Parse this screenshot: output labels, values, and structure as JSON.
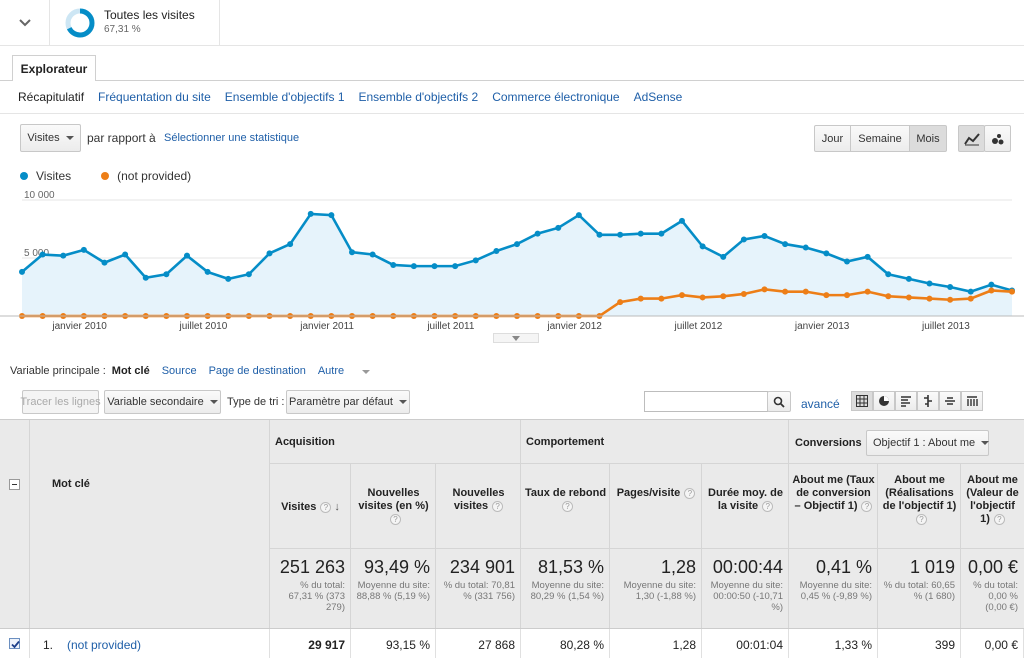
{
  "segment": {
    "title": "Toutes les visites",
    "percent": "67,31 %",
    "ring_fraction": 0.6731
  },
  "tabs": {
    "explorer": "Explorateur"
  },
  "subnav": [
    "Récapitulatif",
    "Fréquentation du site",
    "Ensemble d'objectifs 1",
    "Ensemble d'objectifs 2",
    "Commerce électronique",
    "AdSense"
  ],
  "controls": {
    "metric_select": "Visites",
    "compare_label": "par rapport à",
    "select_metric_link": "Sélectionner une statistique",
    "period_buttons": [
      "Jour",
      "Semaine",
      "Mois"
    ],
    "active_period": "Mois"
  },
  "legend": [
    {
      "label": "Visites",
      "color": "#058dc7"
    },
    {
      "label": "(not provided)",
      "color": "#ed7e17"
    }
  ],
  "chart_data": {
    "type": "line",
    "ylim": [
      0,
      10000
    ],
    "y_ticks": [
      "10 000",
      "5 000"
    ],
    "x_labels": [
      "janvier 2010",
      "juillet 2010",
      "janvier 2011",
      "juillet 2011",
      "janvier 2012",
      "juillet 2012",
      "janvier 2013",
      "juillet 2013"
    ],
    "series": [
      {
        "name": "Visites",
        "color": "#058dc7",
        "fill": true,
        "values": [
          3800,
          5300,
          5200,
          5700,
          4600,
          5300,
          3300,
          3600,
          5200,
          3800,
          3200,
          3600,
          5400,
          6200,
          8800,
          8700,
          5500,
          5300,
          4400,
          4300,
          4300,
          4300,
          4800,
          5600,
          6200,
          7100,
          7600,
          8700,
          7000,
          7000,
          7100,
          7100,
          8200,
          6000,
          5100,
          6600,
          6900,
          6200,
          5900,
          5400,
          4700,
          5100,
          3600,
          3200,
          2800,
          2500,
          2100,
          2700,
          2200
        ]
      },
      {
        "name": "(not provided)",
        "color": "#ed7e17",
        "fill": false,
        "values": [
          0,
          0,
          0,
          0,
          0,
          0,
          0,
          0,
          0,
          0,
          0,
          0,
          0,
          0,
          0,
          0,
          0,
          0,
          0,
          0,
          0,
          0,
          0,
          0,
          0,
          0,
          0,
          0,
          0,
          1200,
          1500,
          1500,
          1800,
          1600,
          1700,
          1900,
          2300,
          2100,
          2100,
          1800,
          1800,
          2100,
          1700,
          1600,
          1500,
          1400,
          1500,
          2200,
          2100
        ]
      }
    ]
  },
  "primary_dimension": {
    "label": "Variable principale :",
    "options": [
      "Mot clé",
      "Source",
      "Page de destination",
      "Autre"
    ]
  },
  "toolbar": {
    "plot_rows": "Tracer les lignes",
    "secondary_dim": "Variable secondaire",
    "sort_label": "Type de tri :",
    "sort_value": "Paramètre par défaut",
    "search_placeholder": "",
    "advanced": "avancé"
  },
  "table": {
    "keyword_header": "Mot clé",
    "groups": {
      "acquisition": "Acquisition",
      "behavior": "Comportement",
      "conversions": "Conversions",
      "goal_select": "Objectif 1 : About me"
    },
    "columns": [
      {
        "header": "Visites",
        "total": "251 263",
        "sub": "% du total: 67,31 % (373 279)",
        "row": "29 917"
      },
      {
        "header": "Nouvelles visites (en %)",
        "total": "93,49 %",
        "sub": "Moyenne du site: 88,88 % (5,19 %)",
        "row": "93,15 %"
      },
      {
        "header": "Nouvelles visites",
        "total": "234 901",
        "sub": "% du total: 70,81 % (331 756)",
        "row": "27 868"
      },
      {
        "header": "Taux de rebond",
        "total": "81,53 %",
        "sub": "Moyenne du site: 80,29 % (1,54 %)",
        "row": "80,28 %"
      },
      {
        "header": "Pages/visite",
        "total": "1,28",
        "sub": "Moyenne du site: 1,30 (-1,88 %)",
        "row": "1,28"
      },
      {
        "header": "Durée moy. de la visite",
        "total": "00:00:44",
        "sub": "Moyenne du site: 00:00:50 (-10,71 %)",
        "row": "00:01:04"
      },
      {
        "header": "About me (Taux de conversion – Objectif 1)",
        "total": "0,41 %",
        "sub": "Moyenne du site: 0,45 % (-9,89 %)",
        "row": "1,33 %"
      },
      {
        "header": "About me (Réalisations de l'objectif 1)",
        "total": "1 019",
        "sub": "% du total: 60,65 % (1 680)",
        "row": "399"
      },
      {
        "header": "About me (Valeur de l'objectif 1)",
        "total": "0,00 €",
        "sub": "% du total: 0,00 % (0,00 €)",
        "row": "0,00 €"
      }
    ],
    "rows": [
      {
        "index": "1.",
        "keyword": "(not provided)"
      }
    ]
  }
}
